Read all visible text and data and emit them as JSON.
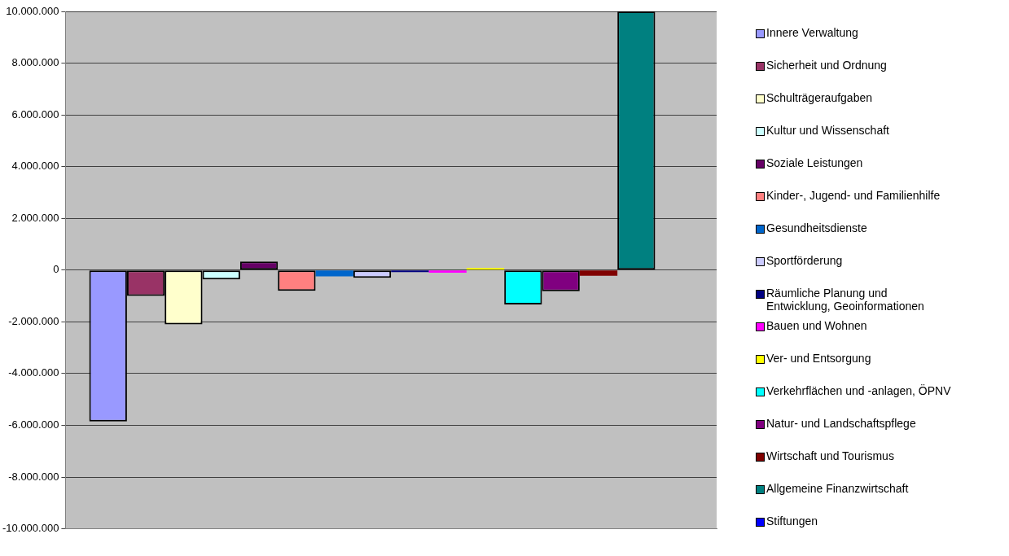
{
  "chart_data": {
    "type": "bar",
    "categories": [
      null
    ],
    "series": [
      {
        "name": "Innere Verwaltung",
        "color": "#9999ff",
        "values": [
          -5850000
        ]
      },
      {
        "name": "Sicherheit und Ordnung",
        "color": "#993366",
        "values": [
          -1000000
        ]
      },
      {
        "name": "Schulträgeraufgaben",
        "color": "#ffffcc",
        "values": [
          -2100000
        ]
      },
      {
        "name": "Kultur und Wissenschaft",
        "color": "#ccffff",
        "values": [
          -360000
        ]
      },
      {
        "name": "Soziale Leistungen",
        "color": "#660066",
        "values": [
          330000
        ]
      },
      {
        "name": "Kinder-, Jugend- und Familienhilfe",
        "color": "#ff8080",
        "values": [
          -800000
        ]
      },
      {
        "name": "Gesundheitsdienste",
        "color": "#0066cc",
        "values": [
          -240000
        ]
      },
      {
        "name": "Sportförderung",
        "color": "#ccccff",
        "values": [
          -300000
        ]
      },
      {
        "name": "Räumliche Planung und Entwicklung, Geoinformationen",
        "color": "#000080",
        "values": [
          -80000
        ]
      },
      {
        "name": "Bauen und Wohnen",
        "color": "#ff00ff",
        "values": [
          -100000
        ]
      },
      {
        "name": "Ver- und Entsorgung",
        "color": "#ffff00",
        "values": [
          80000
        ]
      },
      {
        "name": "Verkehrflächen und -anlagen, ÖPNV",
        "color": "#00ffff",
        "values": [
          -1330000
        ]
      },
      {
        "name": "Natur- und Landschaftspflege",
        "color": "#800080",
        "values": [
          -820000
        ]
      },
      {
        "name": "Wirtschaft und Tourismus",
        "color": "#800000",
        "values": [
          -220000
        ]
      },
      {
        "name": "Allgemeine Finanzwirtschaft",
        "color": "#008080",
        "values": [
          10000000
        ]
      },
      {
        "name": "Stiftungen",
        "color": "#0000ff",
        "values": [
          null
        ]
      }
    ],
    "ylim": [
      -10000000,
      10000000
    ],
    "yticks": [
      {
        "value": -10000000,
        "label": "-10.000.000"
      },
      {
        "value": -8000000,
        "label": "-8.000.000"
      },
      {
        "value": -6000000,
        "label": "-6.000.000"
      },
      {
        "value": -4000000,
        "label": "-4.000.000"
      },
      {
        "value": -2000000,
        "label": "-2.000.000"
      },
      0,
      {
        "value": 2000000,
        "label": "2.000.000"
      },
      {
        "value": 4000000,
        "label": "4.000.000"
      },
      {
        "value": 6000000,
        "label": "6.000.000"
      },
      {
        "value": 8000000,
        "label": "8.000.000"
      },
      {
        "value": 10000000,
        "label": "10.000.000"
      }
    ],
    "grid": "y",
    "legend": "right"
  }
}
